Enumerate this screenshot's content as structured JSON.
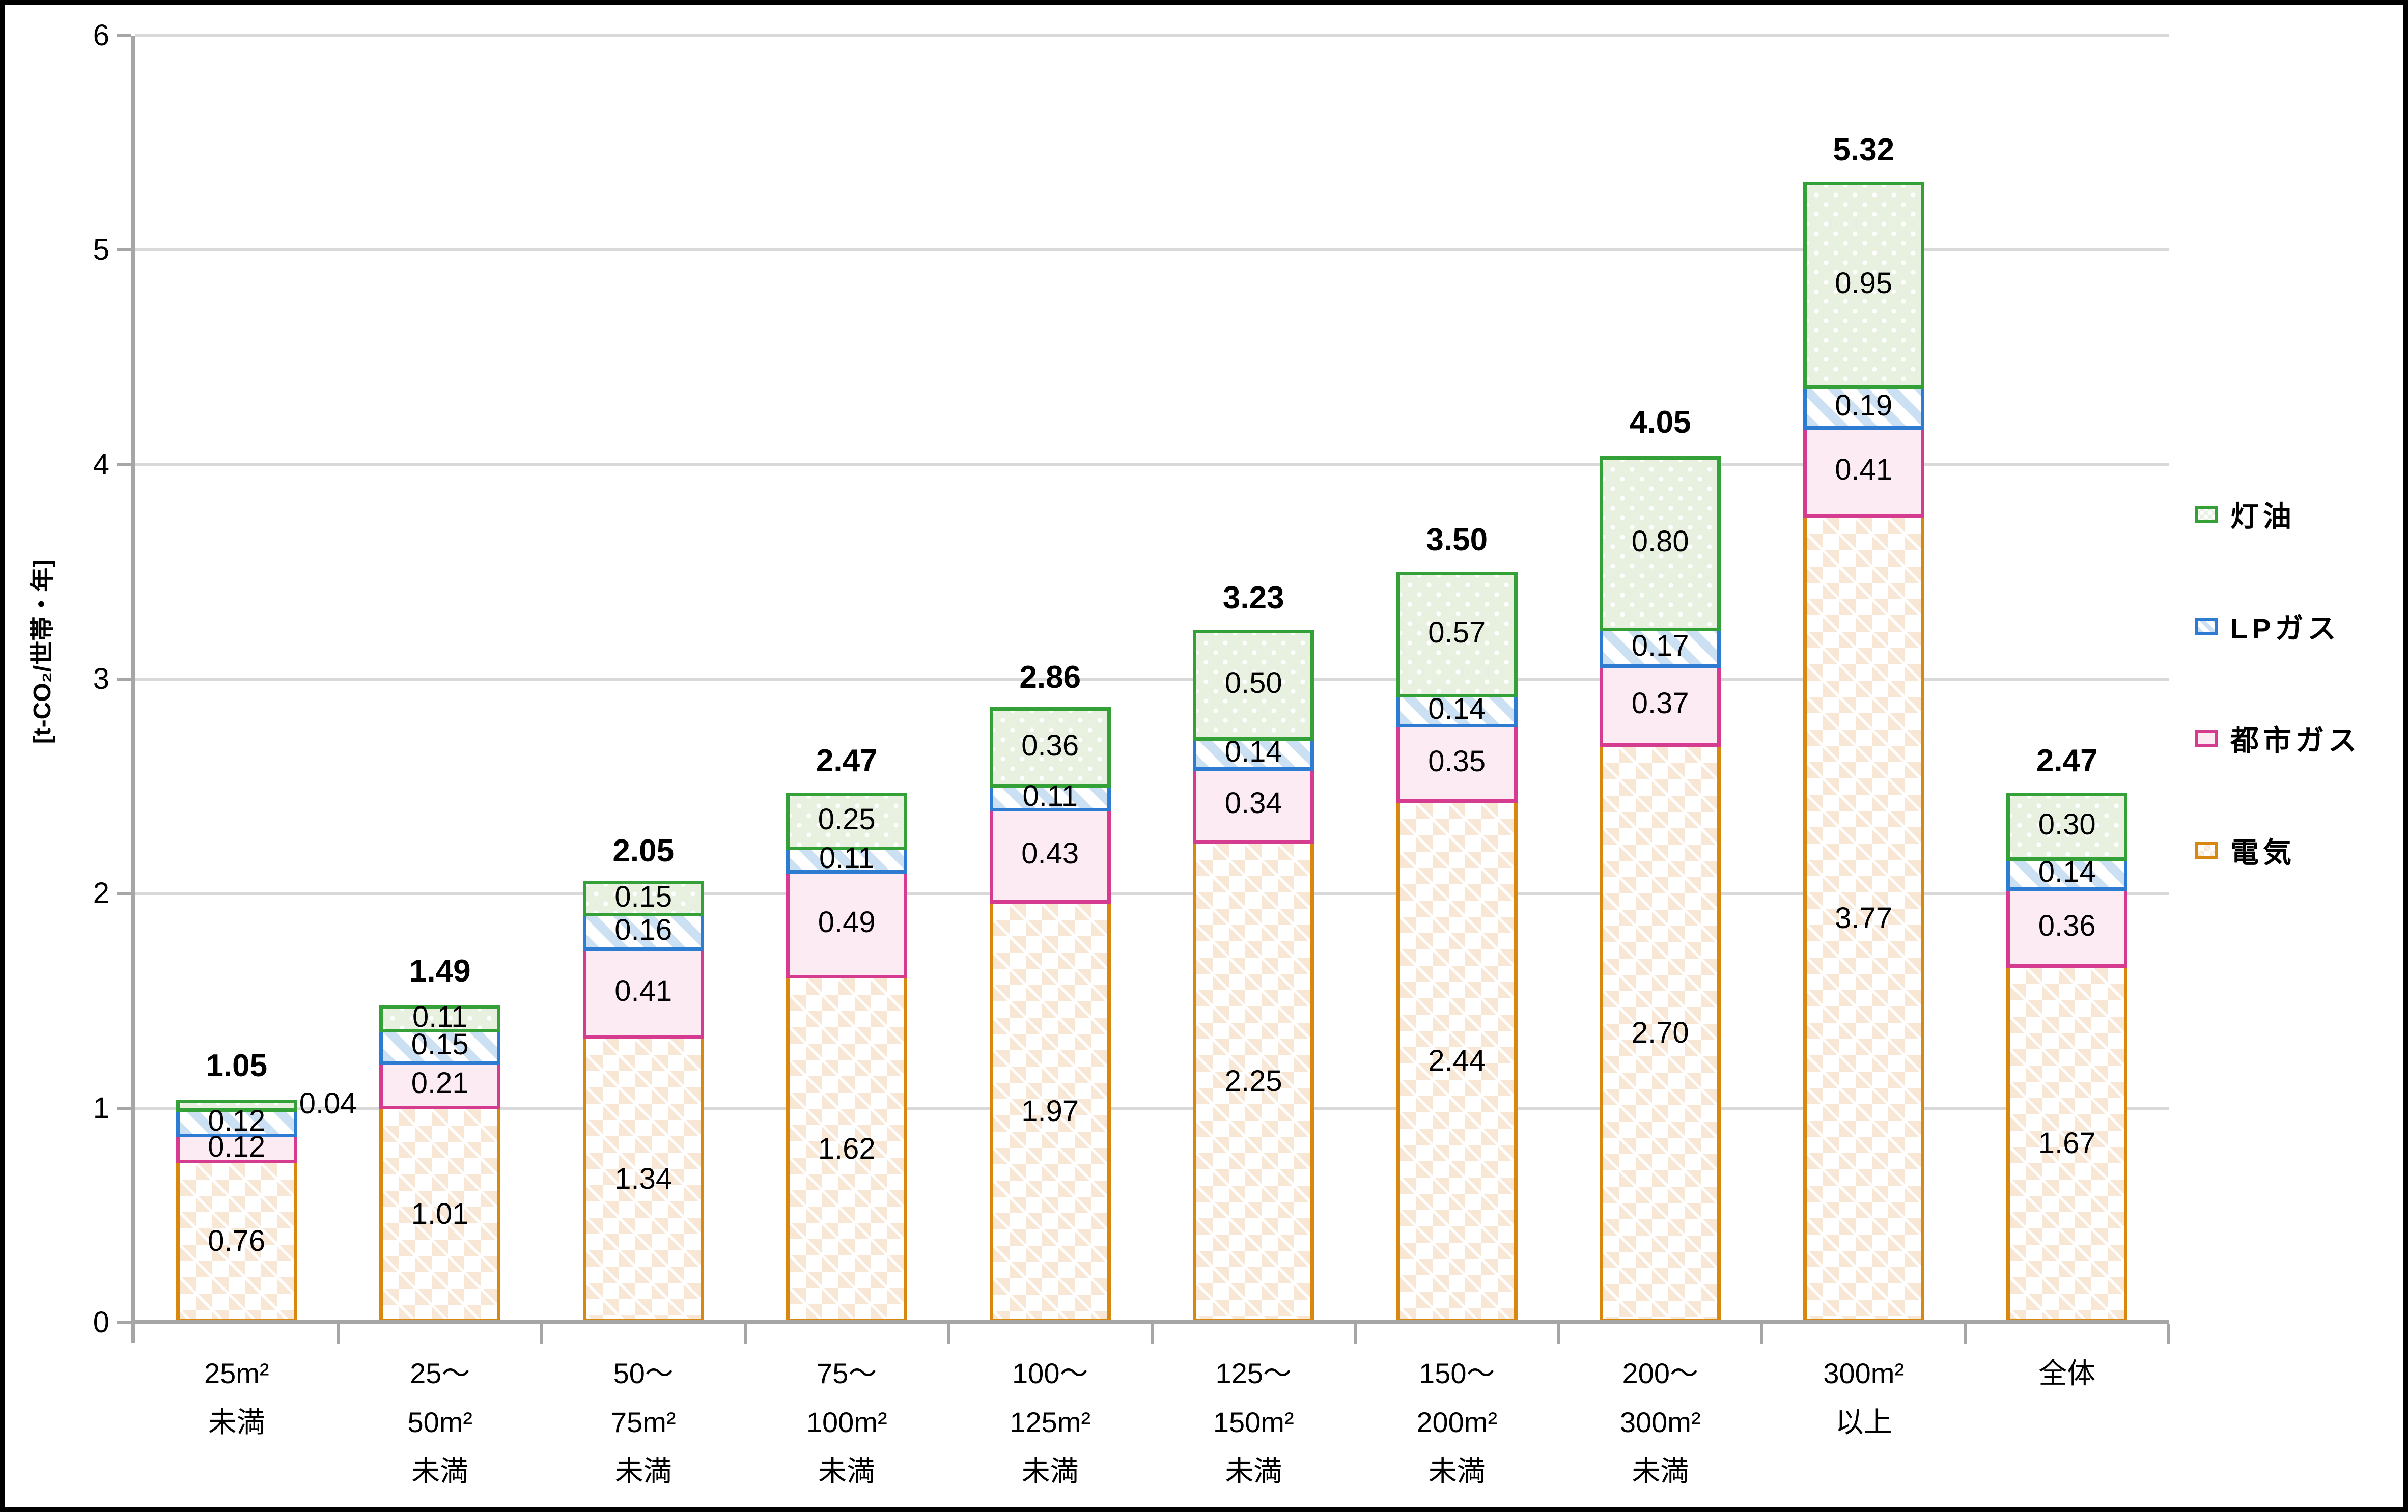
{
  "chart_data": {
    "type": "bar",
    "stacked": true,
    "title": "",
    "ylabel": "[t-CO₂/世帯・年]",
    "ylim": [
      0,
      6
    ],
    "ytick_labels": [
      "0",
      "1",
      "2",
      "3",
      "4",
      "5",
      "6"
    ],
    "grid": true,
    "legend_position": "right",
    "categories": [
      {
        "lines": [
          "25m²",
          "未満"
        ]
      },
      {
        "lines": [
          "25～",
          "50m²",
          "未満"
        ]
      },
      {
        "lines": [
          "50～",
          "75m²",
          "未満"
        ]
      },
      {
        "lines": [
          "75～",
          "100m²",
          "未満"
        ]
      },
      {
        "lines": [
          "100～",
          "125m²",
          "未満"
        ]
      },
      {
        "lines": [
          "125～",
          "150m²",
          "未満"
        ]
      },
      {
        "lines": [
          "150～",
          "200m²",
          "未満"
        ]
      },
      {
        "lines": [
          "200～",
          "300m²",
          "未満"
        ]
      },
      {
        "lines": [
          "300m²",
          "以上"
        ]
      },
      {
        "lines": [
          "全体"
        ]
      }
    ],
    "series": [
      {
        "key": "electricity",
        "name": "電気",
        "border_color": "#D8870F",
        "fill_style": "orange-diamond-pattern",
        "values": [
          0.76,
          1.01,
          1.34,
          1.62,
          1.97,
          2.25,
          2.44,
          2.7,
          3.77,
          1.67
        ]
      },
      {
        "key": "citygas",
        "name": "都市ガス",
        "border_color": "#D53C8F",
        "fill_style": "light-pink-solid",
        "values": [
          0.12,
          0.21,
          0.41,
          0.49,
          0.43,
          0.34,
          0.35,
          0.37,
          0.41,
          0.36
        ]
      },
      {
        "key": "lpgas",
        "name": "LPガス",
        "border_color": "#2E7CD1",
        "fill_style": "blue-diagonal-stripes",
        "values": [
          0.12,
          0.15,
          0.16,
          0.11,
          0.11,
          0.14,
          0.14,
          0.17,
          0.19,
          0.14
        ]
      },
      {
        "key": "kerosene",
        "name": "灯油",
        "border_color": "#33A038",
        "fill_style": "green-white-dots",
        "values": [
          0.04,
          0.11,
          0.15,
          0.25,
          0.36,
          0.5,
          0.57,
          0.8,
          0.95,
          0.3
        ]
      }
    ],
    "totals": [
      1.05,
      1.49,
      2.05,
      2.47,
      2.86,
      3.23,
      3.5,
      4.05,
      5.32,
      2.47
    ],
    "legend_order": [
      "kerosene",
      "lpgas",
      "citygas",
      "electricity"
    ],
    "colors": {
      "gridline": "#D9D9D9",
      "axis": "#A6A6A6",
      "text": "#000000",
      "frame": "#000000",
      "background": "#FFFFFF"
    }
  }
}
